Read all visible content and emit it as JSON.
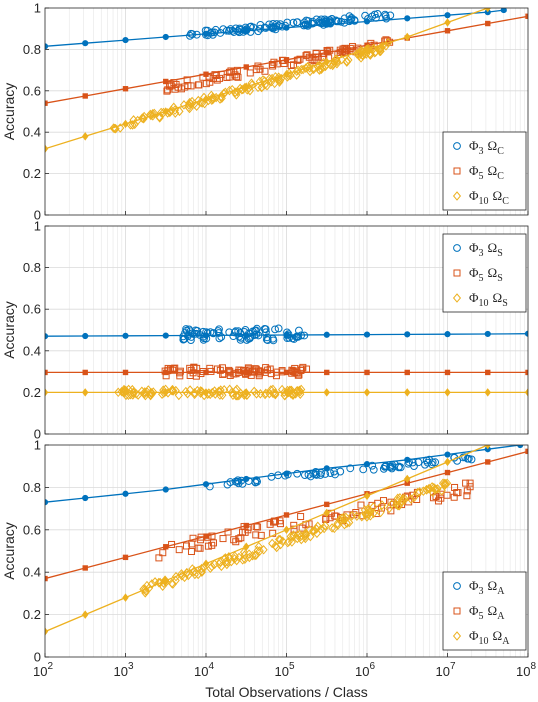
{
  "chart_data": [
    {
      "type": "scatter",
      "panel": "top",
      "ylabel": "Accuracy",
      "ylim": [
        0,
        1
      ],
      "xscale": "log",
      "xlim": [
        100,
        100000000
      ],
      "grid": true,
      "legend_position": "bottom-right",
      "yticks": [
        "0",
        "0.2",
        "0.4",
        "0.6",
        "0.8",
        "1"
      ],
      "series": [
        {
          "name": "Φ3 ΩC",
          "base": "Φ",
          "sub": "3",
          "sym": "Ω",
          "ssub": "C",
          "color": "#0072BD",
          "marker": "circle",
          "fit": {
            "x": [
              100,
              316,
              1000,
              3162,
              10000,
              31623,
              100000,
              316228,
              1000000,
              3162278,
              10000000,
              31622777,
              50000000
            ],
            "y": [
              0.815,
              0.83,
              0.845,
              0.86,
              0.875,
              0.89,
              0.905,
              0.92,
              0.935,
              0.95,
              0.965,
              0.98,
              0.99
            ]
          },
          "scatter": {
            "xmin": 6000,
            "xmax": 2000000,
            "n": 110,
            "yAt": [
              [
                6000,
                0.87
              ],
              [
                2000000,
                0.965
              ]
            ],
            "jitter": 0.015
          }
        },
        {
          "name": "Φ5 ΩC",
          "base": "Φ",
          "sub": "5",
          "sym": "Ω",
          "ssub": "C",
          "color": "#D95319",
          "marker": "square",
          "fit": {
            "x": [
              100,
              316,
              1000,
              3162,
              10000,
              31623,
              100000,
              316228,
              1000000,
              3162278,
              10000000,
              31622777,
              100000000
            ],
            "y": [
              0.54,
              0.575,
              0.61,
              0.645,
              0.68,
              0.715,
              0.75,
              0.785,
              0.82,
              0.855,
              0.89,
              0.925,
              0.96
            ]
          },
          "scatter": {
            "xmin": 3000,
            "xmax": 2000000,
            "n": 90,
            "yAt": [
              [
                3000,
                0.61
              ],
              [
                2000000,
                0.84
              ]
            ],
            "jitter": 0.02
          }
        },
        {
          "name": "Φ10 ΩC",
          "base": "Φ",
          "sub": "10",
          "sym": "Ω",
          "ssub": "C",
          "color": "#EDB120",
          "marker": "diamond",
          "fit": {
            "x": [
              100,
              316,
              1000,
              3162,
              10000,
              31623,
              100000,
              316228,
              1000000,
              3162278,
              10000000,
              31622777
            ],
            "y": [
              0.32,
              0.38,
              0.44,
              0.5,
              0.56,
              0.62,
              0.68,
              0.74,
              0.8,
              0.86,
              0.93,
              1.0
            ]
          },
          "scatter": {
            "xmin": 700,
            "xmax": 2000000,
            "n": 160,
            "yAt": [
              [
                700,
                0.42
              ],
              [
                2000000,
                0.82
              ]
            ],
            "jitter": 0.018
          }
        }
      ]
    },
    {
      "type": "scatter",
      "panel": "middle",
      "ylabel": "Accuracy",
      "ylim": [
        0,
        1
      ],
      "xscale": "log",
      "xlim": [
        100,
        100000000
      ],
      "grid": true,
      "legend_position": "top-right",
      "yticks": [
        "0",
        "0.2",
        "0.4",
        "0.6",
        "0.8",
        "1"
      ],
      "series": [
        {
          "name": "Φ3 ΩS",
          "base": "Φ",
          "sub": "3",
          "sym": "Ω",
          "ssub": "S",
          "color": "#0072BD",
          "marker": "circle",
          "fit": {
            "x": [
              100,
              316,
              1000,
              3162,
              10000,
              31623,
              100000,
              316228,
              1000000,
              3162278,
              10000000,
              31622777,
              100000000
            ],
            "y": [
              0.47,
              0.471,
              0.472,
              0.473,
              0.474,
              0.475,
              0.476,
              0.477,
              0.478,
              0.479,
              0.48,
              0.481,
              0.482
            ]
          },
          "scatter": {
            "xmin": 5000,
            "xmax": 180000,
            "n": 80,
            "yAt": [
              [
                5000,
                0.48
              ],
              [
                180000,
                0.48
              ]
            ],
            "jitter": 0.03
          }
        },
        {
          "name": "Φ5 ΩS",
          "base": "Φ",
          "sub": "5",
          "sym": "Ω",
          "ssub": "S",
          "color": "#D95319",
          "marker": "square",
          "fit": {
            "x": [
              100,
              316,
              1000,
              3162,
              10000,
              31623,
              100000,
              316228,
              1000000,
              3162278,
              10000000,
              31622777,
              100000000
            ],
            "y": [
              0.296,
              0.296,
              0.296,
              0.296,
              0.296,
              0.296,
              0.296,
              0.296,
              0.296,
              0.296,
              0.296,
              0.296,
              0.296
            ]
          },
          "scatter": {
            "xmin": 3000,
            "xmax": 180000,
            "n": 80,
            "yAt": [
              [
                3000,
                0.3
              ],
              [
                180000,
                0.3
              ]
            ],
            "jitter": 0.022
          }
        },
        {
          "name": "Φ10 ΩS",
          "base": "Φ",
          "sub": "10",
          "sym": "Ω",
          "ssub": "S",
          "color": "#EDB120",
          "marker": "diamond",
          "fit": {
            "x": [
              100,
              316,
              1000,
              3162,
              10000,
              31623,
              100000,
              316228,
              1000000,
              3162278,
              10000000,
              31622777,
              100000000
            ],
            "y": [
              0.2,
              0.2,
              0.2,
              0.2,
              0.2,
              0.2,
              0.2,
              0.2,
              0.2,
              0.2,
              0.2,
              0.2,
              0.2
            ]
          },
          "scatter": {
            "xmin": 800,
            "xmax": 180000,
            "n": 110,
            "yAt": [
              [
                800,
                0.2
              ],
              [
                180000,
                0.2
              ]
            ],
            "jitter": 0.016
          }
        }
      ]
    },
    {
      "type": "scatter",
      "panel": "bottom",
      "ylabel": "Accuracy",
      "xlabel": "Total Observations / Class",
      "ylim": [
        0,
        1
      ],
      "xscale": "log",
      "xlim": [
        100,
        100000000
      ],
      "grid": true,
      "legend_position": "bottom-right",
      "yticks": [
        "0",
        "0.2",
        "0.4",
        "0.6",
        "0.8",
        "1"
      ],
      "xticks": [
        {
          "base": "10",
          "exp": "2",
          "value": 100
        },
        {
          "base": "10",
          "exp": "3",
          "value": 1000
        },
        {
          "base": "10",
          "exp": "4",
          "value": 10000
        },
        {
          "base": "10",
          "exp": "5",
          "value": 100000
        },
        {
          "base": "10",
          "exp": "6",
          "value": 1000000
        },
        {
          "base": "10",
          "exp": "7",
          "value": 10000000
        },
        {
          "base": "10",
          "exp": "8",
          "value": 100000000
        }
      ],
      "series": [
        {
          "name": "Φ3 ΩA",
          "base": "Φ",
          "sub": "3",
          "sym": "Ω",
          "ssub": "A",
          "color": "#0072BD",
          "marker": "circle",
          "fit": {
            "x": [
              100,
              316,
              1000,
              3162,
              10000,
              31623,
              100000,
              316228,
              1000000,
              3162278,
              10000000,
              31622777,
              80000000
            ],
            "y": [
              0.73,
              0.75,
              0.77,
              0.79,
              0.815,
              0.84,
              0.865,
              0.89,
              0.91,
              0.93,
              0.955,
              0.98,
              1.0
            ]
          },
          "scatter": {
            "xmin": 10000,
            "xmax": 20000000,
            "n": 70,
            "yAt": [
              [
                10000,
                0.81
              ],
              [
                20000000,
                0.94
              ]
            ],
            "jitter": 0.012
          }
        },
        {
          "name": "Φ5 ΩA",
          "base": "Φ",
          "sub": "5",
          "sym": "Ω",
          "ssub": "A",
          "color": "#D95319",
          "marker": "square",
          "fit": {
            "x": [
              100,
              316,
              1000,
              3162,
              10000,
              31623,
              100000,
              316228,
              1000000,
              3162278,
              10000000,
              31622777,
              100000000
            ],
            "y": [
              0.37,
              0.42,
              0.47,
              0.52,
              0.57,
              0.62,
              0.67,
              0.72,
              0.77,
              0.82,
              0.87,
              0.92,
              0.97
            ]
          },
          "scatter": {
            "xmin": 2500,
            "xmax": 20000000,
            "n": 90,
            "yAt": [
              [
                2500,
                0.5
              ],
              [
                20000000,
                0.8
              ]
            ],
            "jitter": 0.035
          }
        },
        {
          "name": "Φ10 ΩA",
          "base": "Φ",
          "sub": "10",
          "sym": "Ω",
          "ssub": "A",
          "color": "#EDB120",
          "marker": "diamond",
          "fit": {
            "x": [
              100,
              316,
              1000,
              3162,
              10000,
              31623,
              100000,
              316228,
              1000000,
              3162278,
              10000000,
              31622777
            ],
            "y": [
              0.12,
              0.2,
              0.28,
              0.36,
              0.44,
              0.52,
              0.6,
              0.68,
              0.76,
              0.84,
              0.92,
              1.0
            ]
          },
          "scatter": {
            "xmin": 1500,
            "xmax": 12000000,
            "n": 160,
            "yAt": [
              [
                1500,
                0.31
              ],
              [
                12000000,
                0.82
              ]
            ],
            "jitter": 0.02
          }
        }
      ]
    }
  ]
}
